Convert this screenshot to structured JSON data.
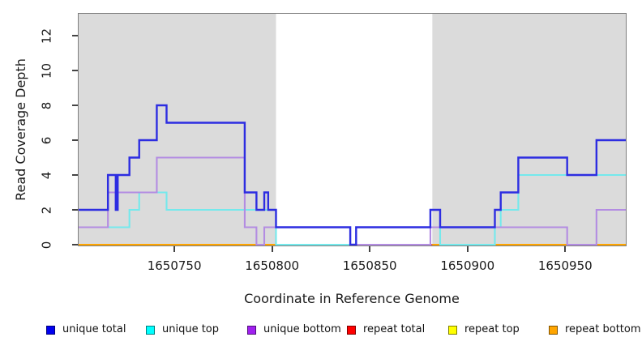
{
  "figure": {
    "y_axis_label": "Read Coverage Depth",
    "x_axis_label": "Coordinate in Reference Genome"
  },
  "legend": {
    "items": [
      {
        "label": "unique total",
        "color": "#0000F0"
      },
      {
        "label": "unique top",
        "color": "#00FFFF"
      },
      {
        "label": "unique bottom",
        "color": "#A020F0"
      },
      {
        "label": "repeat total",
        "color": "#FF0000"
      },
      {
        "label": "repeat top",
        "color": "#FFFF00"
      },
      {
        "label": "repeat bottom",
        "color": "#FFA500"
      }
    ]
  },
  "chart_data": {
    "type": "line",
    "subtype": "step-coverage",
    "title": "",
    "xlabel": "Coordinate in Reference Genome",
    "ylabel": "Read Coverage Depth",
    "xlim": [
      1650701,
      1650981
    ],
    "ylim": [
      0,
      13.3
    ],
    "xticks": [
      1650750,
      1650800,
      1650850,
      1650900,
      1650950
    ],
    "yticks": [
      0,
      2,
      4,
      6,
      8,
      10,
      12
    ],
    "grid": false,
    "panel_background": "#DBDBDB",
    "highlight_region": {
      "x0": 1650802,
      "x1": 1650882,
      "color": "#FFFFFF"
    },
    "series": [
      {
        "name": "unique total",
        "line_color": "#2D2DE1",
        "steps": [
          [
            1650701,
            2
          ],
          [
            1650716,
            4
          ],
          [
            1650720,
            2
          ],
          [
            1650721,
            4
          ],
          [
            1650727,
            5
          ],
          [
            1650732,
            6
          ],
          [
            1650741,
            8
          ],
          [
            1650746,
            7
          ],
          [
            1650786,
            3
          ],
          [
            1650792,
            2
          ],
          [
            1650796,
            3
          ],
          [
            1650798,
            2
          ],
          [
            1650802,
            1
          ],
          [
            1650840,
            0
          ],
          [
            1650843,
            1
          ],
          [
            1650881,
            2
          ],
          [
            1650886,
            1
          ],
          [
            1650914,
            2
          ],
          [
            1650917,
            3
          ],
          [
            1650926,
            5
          ],
          [
            1650951,
            4
          ],
          [
            1650966,
            6
          ],
          [
            1650981,
            6
          ]
        ]
      },
      {
        "name": "unique top",
        "line_color": "#74E9EC",
        "steps": [
          [
            1650701,
            1
          ],
          [
            1650727,
            2
          ],
          [
            1650732,
            3
          ],
          [
            1650746,
            2
          ],
          [
            1650802,
            0
          ],
          [
            1650843,
            1
          ],
          [
            1650886,
            0
          ],
          [
            1650914,
            1
          ],
          [
            1650917,
            2
          ],
          [
            1650926,
            4
          ],
          [
            1650981,
            4
          ]
        ]
      },
      {
        "name": "unique bottom",
        "line_color": "#B38CE2",
        "steps": [
          [
            1650701,
            1
          ],
          [
            1650716,
            3
          ],
          [
            1650720,
            2
          ],
          [
            1650721,
            3
          ],
          [
            1650741,
            5
          ],
          [
            1650786,
            1
          ],
          [
            1650792,
            0
          ],
          [
            1650796,
            1
          ],
          [
            1650840,
            0
          ],
          [
            1650881,
            1
          ],
          [
            1650951,
            0
          ],
          [
            1650966,
            2
          ],
          [
            1650981,
            2
          ]
        ]
      },
      {
        "name": "repeat total",
        "line_color": "#CD2626",
        "steps": [
          [
            1650701,
            0
          ],
          [
            1650981,
            0
          ]
        ]
      },
      {
        "name": "repeat top",
        "line_color": "#FFFF00",
        "steps": [
          [
            1650701,
            0
          ],
          [
            1650981,
            0
          ]
        ]
      },
      {
        "name": "repeat bottom",
        "line_color": "#FFA500",
        "steps": [
          [
            1650701,
            0
          ],
          [
            1650981,
            0
          ]
        ]
      }
    ],
    "baseline_overlays": [
      {
        "x0": 1650802,
        "x1": 1650841,
        "color": "#92DB92"
      },
      {
        "x0": 1650841,
        "x1": 1650882,
        "color": "#E05B66"
      },
      {
        "x0": 1650886,
        "x1": 1650914,
        "color": "#92DB92"
      }
    ]
  }
}
